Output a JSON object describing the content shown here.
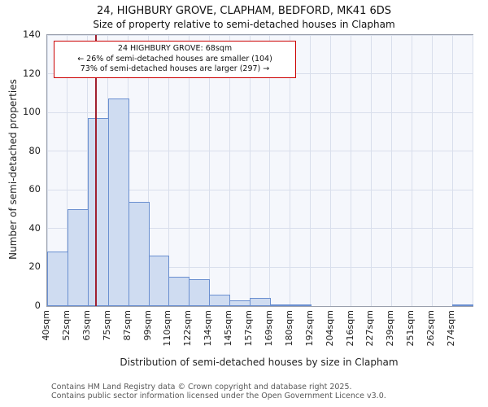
{
  "chart_data": {
    "type": "bar",
    "title": "24, HIGHBURY GROVE, CLAPHAM, BEDFORD, MK41 6DS",
    "subtitle": "Size of property relative to semi-detached houses in Clapham",
    "xlabel": "Distribution of semi-detached houses by size in Clapham",
    "ylabel": "Number of semi-detached properties",
    "categories": [
      "40sqm",
      "52sqm",
      "63sqm",
      "75sqm",
      "87sqm",
      "99sqm",
      "110sqm",
      "122sqm",
      "134sqm",
      "145sqm",
      "157sqm",
      "169sqm",
      "180sqm",
      "192sqm",
      "204sqm",
      "216sqm",
      "227sqm",
      "239sqm",
      "251sqm",
      "262sqm",
      "274sqm"
    ],
    "bin_starts": [
      40,
      52,
      63,
      75,
      87,
      99,
      110,
      122,
      134,
      145,
      157,
      169,
      180,
      192,
      204,
      216,
      227,
      239,
      251,
      262,
      274
    ],
    "values": [
      28,
      50,
      97,
      107,
      54,
      26,
      15,
      14,
      6,
      3,
      4,
      1,
      1,
      0,
      0,
      0,
      0,
      0,
      0,
      0,
      1
    ],
    "ylim": [
      0,
      140
    ],
    "ytick_step": 20,
    "grid": "on",
    "marker": {
      "value": 68,
      "label": "68sqm"
    },
    "annotation": {
      "line1": "24 HIGHBURY GROVE: 68sqm",
      "line2": "← 26% of semi-detached houses are smaller (104)",
      "line3": "73% of semi-detached houses are larger (297) →"
    },
    "colors": {
      "bar_fill": "#cfdcf1",
      "bar_stroke": "#6a8fd0",
      "grid": "#d9dfec",
      "marker_line": "#a02030",
      "annotation_border": "#cc0000"
    }
  },
  "footer": {
    "line1": "Contains HM Land Registry data © Crown copyright and database right 2025.",
    "line2": "Contains public sector information licensed under the Open Government Licence v3.0."
  }
}
